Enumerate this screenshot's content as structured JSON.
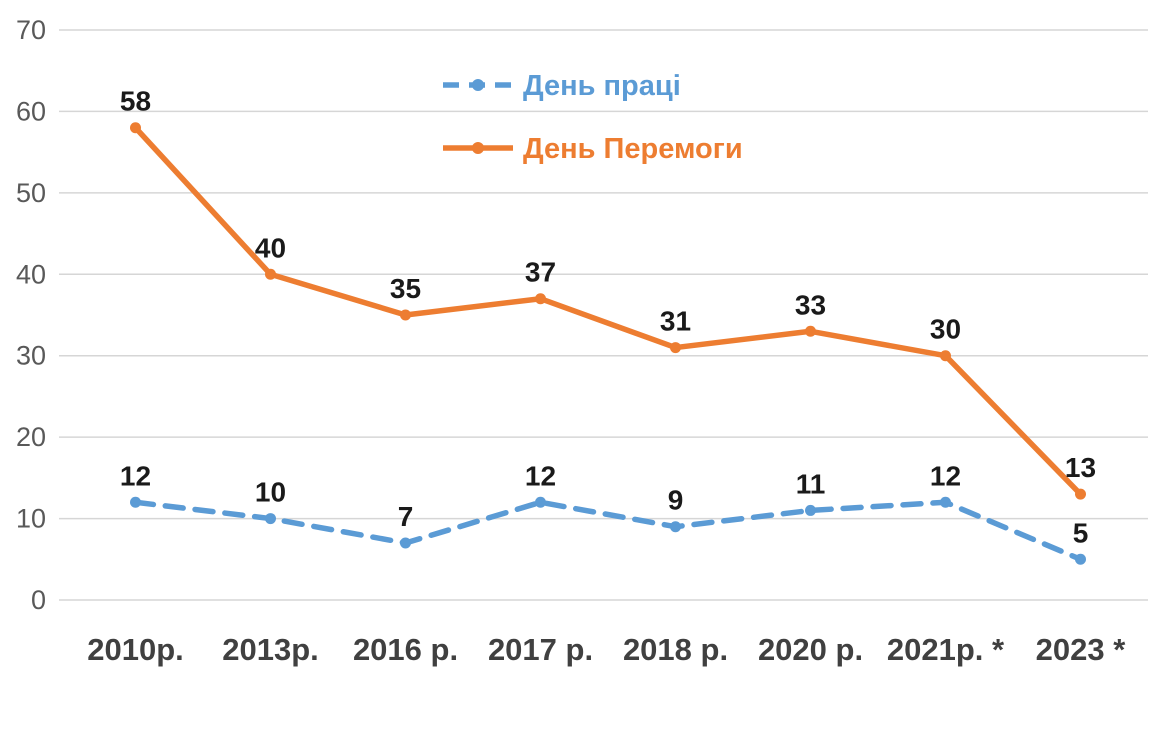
{
  "chart_data": {
    "type": "line",
    "title": "",
    "xlabel": "",
    "ylabel": "",
    "categories": [
      "2010р.",
      "2013р.",
      "2016 р.",
      "2017 р.",
      "2018 р.",
      "2020 р.",
      "2021р. *",
      "2023 *"
    ],
    "series": [
      {
        "name": "День праці",
        "values": [
          12,
          10,
          7,
          12,
          9,
          11,
          12,
          5
        ],
        "color": "#5B9BD5",
        "style": "dashed"
      },
      {
        "name": "День Перемоги",
        "values": [
          58,
          40,
          35,
          37,
          31,
          33,
          30,
          13
        ],
        "color": "#ED7D31",
        "style": "solid"
      }
    ],
    "ylim": [
      0,
      70
    ],
    "ytick_step": 10,
    "ytick_labels": [
      "0",
      "10",
      "20",
      "30",
      "40",
      "50",
      "60",
      "70"
    ],
    "grid": true,
    "legend_position": "top-center",
    "colors": {
      "gridline": "#D6D6D6",
      "axis_text": "#595959",
      "xaxis_text": "#404040",
      "data_label": "#1A1A1A",
      "background": "#FFFFFF"
    }
  }
}
